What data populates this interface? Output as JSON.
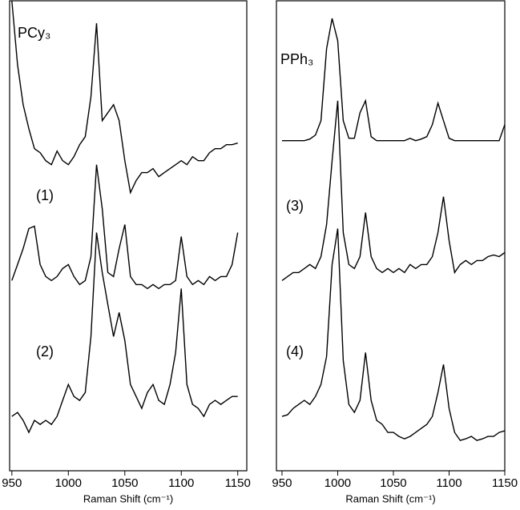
{
  "chart_data": [
    {
      "type": "line",
      "xlabel": "Raman Shift (cm⁻¹)",
      "xlim": [
        948,
        1158
      ],
      "ylim": [
        0,
        588
      ],
      "xticks": [
        950,
        1000,
        1050,
        1100,
        1150
      ],
      "annotations": [
        "PCy₃",
        "(1)",
        "(2)"
      ],
      "x": [
        950,
        955,
        960,
        965,
        970,
        975,
        980,
        985,
        990,
        995,
        1000,
        1005,
        1010,
        1015,
        1020,
        1025,
        1030,
        1035,
        1040,
        1045,
        1050,
        1055,
        1060,
        1065,
        1070,
        1075,
        1080,
        1085,
        1090,
        1095,
        1100,
        1105,
        1110,
        1115,
        1120,
        1125,
        1130,
        1135,
        1140,
        1145,
        1150
      ],
      "series": [
        {
          "color": "#000000",
          "values": [
            588,
            508,
            458,
            428,
            403,
            398,
            388,
            383,
            400,
            388,
            383,
            393,
            408,
            418,
            468,
            560,
            438,
            448,
            458,
            438,
            388,
            348,
            363,
            373,
            373,
            378,
            368,
            373,
            378,
            383,
            388,
            383,
            393,
            388,
            388,
            398,
            403,
            403,
            408,
            408,
            410
          ]
        },
        {
          "color": "#000000",
          "values": [
            238,
            258,
            278,
            303,
            306,
            258,
            243,
            238,
            243,
            253,
            258,
            243,
            233,
            238,
            268,
            383,
            328,
            248,
            243,
            278,
            308,
            243,
            233,
            233,
            228,
            233,
            228,
            233,
            233,
            238,
            293,
            243,
            233,
            238,
            233,
            243,
            238,
            243,
            243,
            258,
            298
          ]
        },
        {
          "color": "#000000",
          "values": [
            68,
            73,
            63,
            48,
            63,
            58,
            63,
            58,
            68,
            88,
            108,
            93,
            88,
            98,
            168,
            298,
            248,
            208,
            168,
            198,
            163,
            108,
            93,
            78,
            98,
            108,
            88,
            83,
            108,
            148,
            228,
            108,
            83,
            78,
            68,
            83,
            88,
            83,
            88,
            93,
            93
          ]
        }
      ]
    },
    {
      "type": "line",
      "xlabel": "Raman Shift (cm⁻¹)",
      "xlim": [
        945,
        1150
      ],
      "ylim": [
        0,
        588
      ],
      "xticks": [
        950,
        1000,
        1050,
        1100,
        1150
      ],
      "annotations": [
        "PPh₃",
        "(3)",
        "(4)"
      ],
      "x": [
        950,
        955,
        960,
        965,
        970,
        975,
        980,
        985,
        990,
        995,
        1000,
        1005,
        1010,
        1015,
        1020,
        1025,
        1030,
        1035,
        1040,
        1045,
        1050,
        1055,
        1060,
        1065,
        1070,
        1075,
        1080,
        1085,
        1090,
        1095,
        1100,
        1105,
        1110,
        1115,
        1120,
        1125,
        1130,
        1135,
        1140,
        1145,
        1150
      ],
      "series": [
        {
          "color": "#000000",
          "values": [
            413,
            413,
            413,
            413,
            413,
            415,
            420,
            438,
            528,
            566,
            538,
            438,
            416,
            416,
            448,
            463,
            418,
            413,
            413,
            413,
            413,
            413,
            413,
            416,
            413,
            415,
            418,
            433,
            460,
            438,
            416,
            413,
            413,
            413,
            413,
            413,
            413,
            413,
            413,
            413,
            433
          ]
        },
        {
          "color": "#000000",
          "values": [
            238,
            243,
            248,
            248,
            253,
            258,
            253,
            268,
            308,
            388,
            463,
            298,
            258,
            253,
            268,
            323,
            268,
            253,
            248,
            253,
            248,
            253,
            248,
            258,
            253,
            258,
            258,
            268,
            298,
            343,
            288,
            248,
            258,
            263,
            258,
            263,
            263,
            268,
            270,
            268,
            273
          ]
        },
        {
          "color": "#000000",
          "values": [
            68,
            70,
            78,
            83,
            88,
            83,
            93,
            108,
            143,
            258,
            303,
            138,
            83,
            73,
            88,
            148,
            88,
            63,
            58,
            48,
            48,
            43,
            40,
            43,
            48,
            53,
            58,
            68,
            98,
            133,
            78,
            48,
            38,
            40,
            43,
            38,
            40,
            43,
            43,
            48,
            50
          ]
        }
      ]
    }
  ]
}
